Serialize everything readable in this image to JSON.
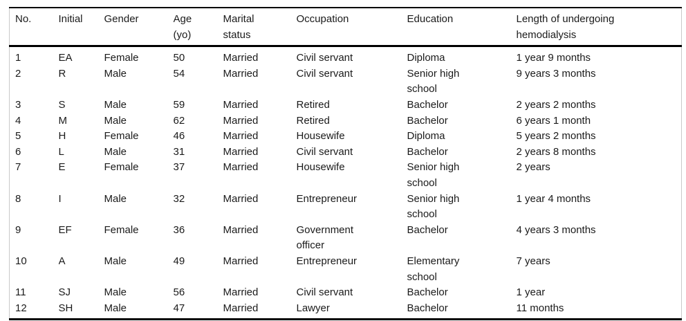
{
  "page": {
    "background_color": "#ffffff",
    "text_color": "#1a1a1a",
    "rule_color": "#000000",
    "side_border_color": "#c9c9c9"
  },
  "table": {
    "columns": [
      {
        "key": "no",
        "label": "No."
      },
      {
        "key": "initial",
        "label": "Initial"
      },
      {
        "key": "gender",
        "label": "Gender"
      },
      {
        "key": "age",
        "label": "Age\n(yo)"
      },
      {
        "key": "marital",
        "label": "Marital\nstatus"
      },
      {
        "key": "occupation",
        "label": "Occupation"
      },
      {
        "key": "education",
        "label": "Education"
      },
      {
        "key": "length",
        "label": "Length of undergoing\nhemodialysis"
      }
    ],
    "rows": [
      [
        "1",
        "EA",
        "Female",
        "50",
        "Married",
        "Civil servant",
        "Diploma",
        "1 year 9 months"
      ],
      [
        "2",
        "R",
        "Male",
        "54",
        "Married",
        "Civil servant",
        "Senior high\nschool",
        "9 years 3 months"
      ],
      [
        "3",
        "S",
        "Male",
        "59",
        "Married",
        "Retired",
        "Bachelor",
        "2 years 2 months"
      ],
      [
        "4",
        "M",
        "Male",
        "62",
        "Married",
        "Retired",
        "Bachelor",
        "6 years 1 month"
      ],
      [
        "5",
        "H",
        "Female",
        "46",
        "Married",
        "Housewife",
        "Diploma",
        "5 years 2 months"
      ],
      [
        "6",
        "L",
        "Male",
        "31",
        "Married",
        "Civil servant",
        "Bachelor",
        "2 years 8 months"
      ],
      [
        "7",
        "E",
        "Female",
        "37",
        "Married",
        "Housewife",
        "Senior high\nschool",
        "2 years"
      ],
      [
        "8",
        "I",
        "Male",
        "32",
        "Married",
        "Entrepreneur",
        "Senior high\nschool",
        "1 year 4 months"
      ],
      [
        "9",
        "EF",
        "Female",
        "36",
        "Married",
        "Government\nofficer",
        "Bachelor",
        "4 years 3 months"
      ],
      [
        "10",
        "A",
        "Male",
        "49",
        "Married",
        "Entrepreneur",
        "Elementary\nschool",
        "7 years"
      ],
      [
        "11",
        "SJ",
        "Male",
        "56",
        "Married",
        "Civil servant",
        "Bachelor",
        "1 year"
      ],
      [
        "12",
        "SH",
        "Male",
        "47",
        "Married",
        "Lawyer",
        "Bachelor",
        "11 months"
      ]
    ]
  }
}
